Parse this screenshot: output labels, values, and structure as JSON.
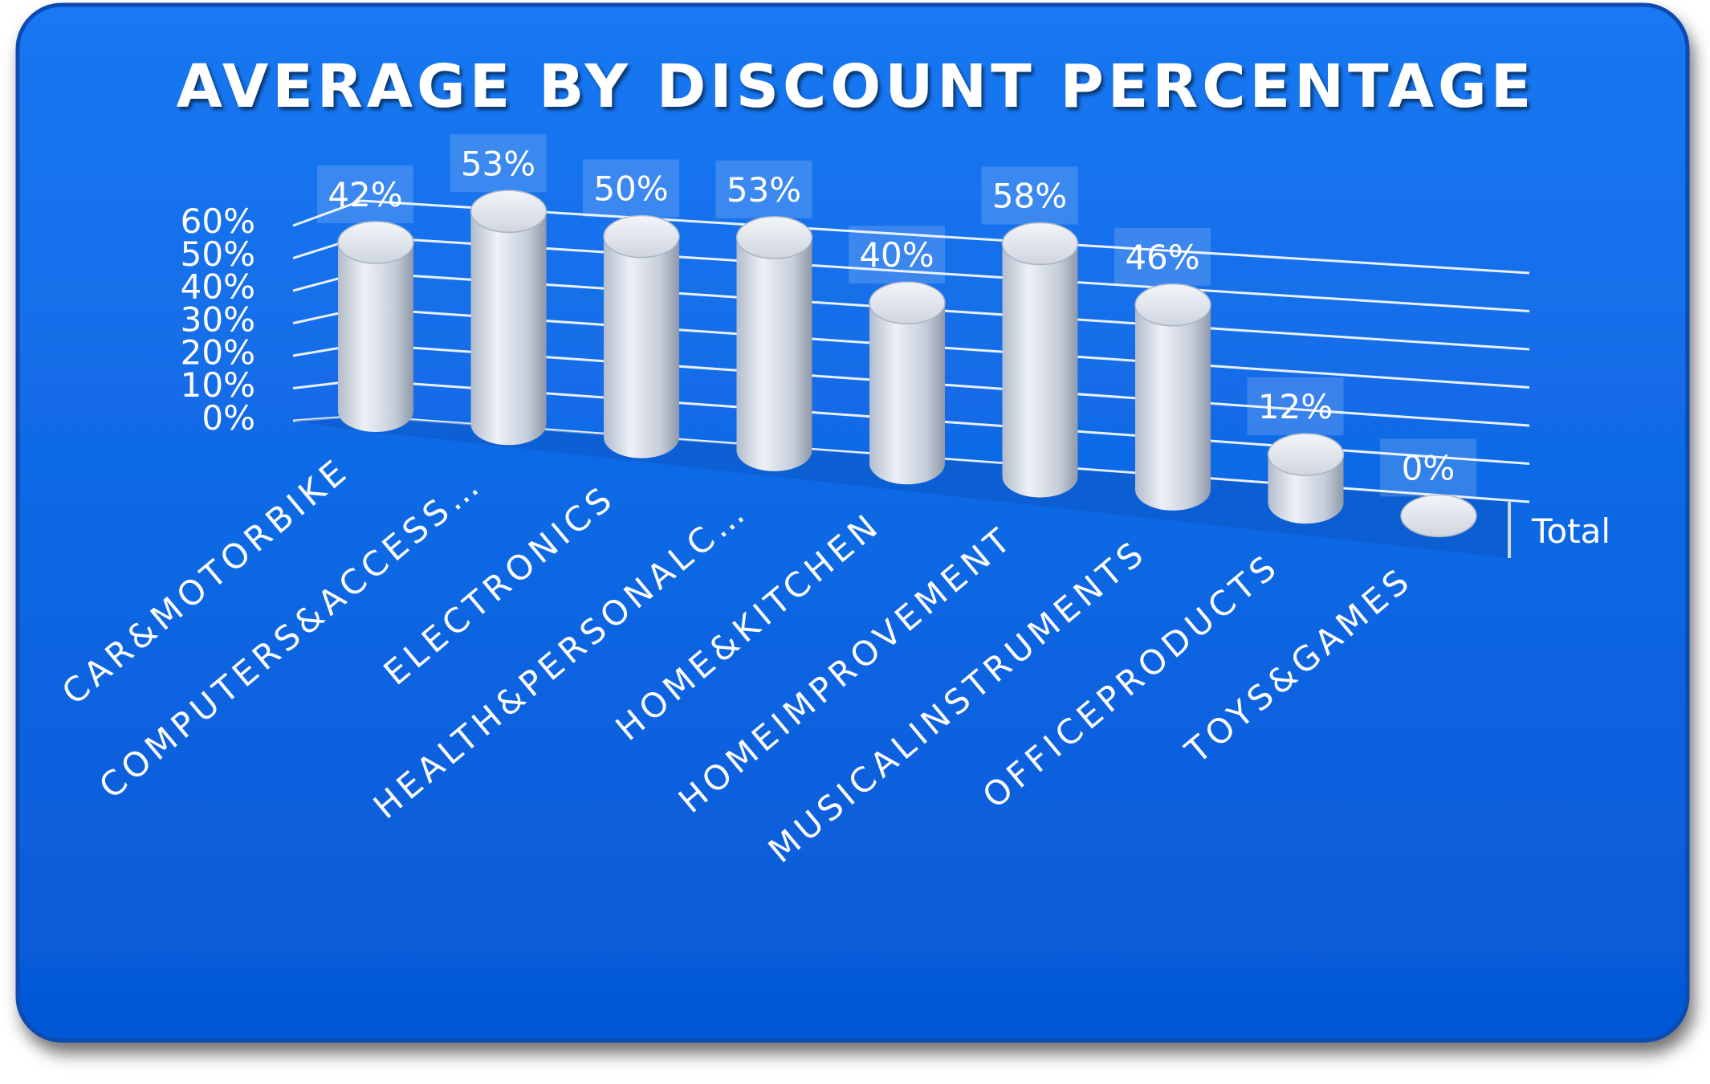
{
  "chart_data": {
    "type": "bar",
    "title": "AVERAGE BY DISCOUNT PERCENTAGE",
    "categories": [
      "CAR&MOTORBIKE",
      "COMPUTERS&ACCESS…",
      "ELECTRONICS",
      "HEALTH&PERSONALC…",
      "HOME&KITCHEN",
      "HOMEIMPROVEMENT",
      "MUSICALINSTRUMENTS",
      "OFFICEPRODUCTS",
      "TOYS&GAMES"
    ],
    "series": [
      {
        "name": "Total",
        "values": [
          0.42,
          0.53,
          0.5,
          0.53,
          0.4,
          0.58,
          0.46,
          0.12,
          0.0
        ],
        "labels": [
          "42%",
          "53%",
          "50%",
          "53%",
          "40%",
          "58%",
          "46%",
          "12%",
          "0%"
        ]
      }
    ],
    "yticks": [
      "0%",
      "10%",
      "20%",
      "30%",
      "40%",
      "50%",
      "60%"
    ],
    "ylim": [
      0,
      0.6
    ],
    "depth_label": "Total",
    "grid": true,
    "colors": {
      "background": "#0a68e8",
      "frame_border": "#0a4fb4",
      "bar": "#c9d0dc",
      "text": "#ffffff",
      "gridline": "#ffffff"
    }
  }
}
